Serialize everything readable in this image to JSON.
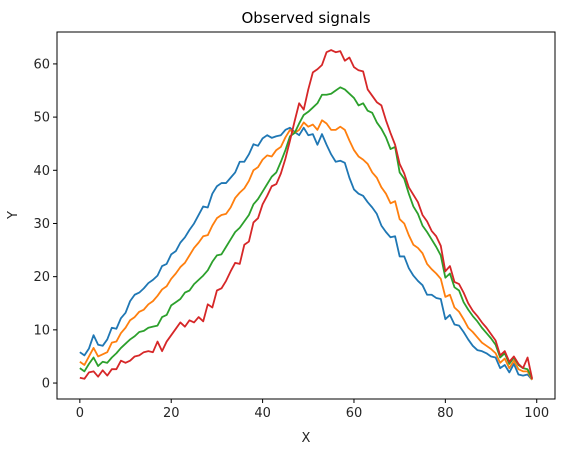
{
  "chart_data": {
    "type": "line",
    "title": "Observed signals",
    "xlabel": "X",
    "ylabel": "Y",
    "xlim": [
      -5,
      104
    ],
    "ylim": [
      -3,
      66
    ],
    "xticks": [
      0,
      20,
      40,
      60,
      80,
      100
    ],
    "yticks": [
      0,
      10,
      20,
      30,
      40,
      50,
      60
    ],
    "grid": false,
    "colors": [
      "#1f77b4",
      "#ff7f0e",
      "#2ca02c",
      "#d62728"
    ],
    "x": [
      0,
      1,
      2,
      3,
      4,
      5,
      6,
      7,
      8,
      9,
      10,
      11,
      12,
      13,
      14,
      15,
      16,
      17,
      18,
      19,
      20,
      21,
      22,
      23,
      24,
      25,
      26,
      27,
      28,
      29,
      30,
      31,
      32,
      33,
      34,
      35,
      36,
      37,
      38,
      39,
      40,
      41,
      42,
      43,
      44,
      45,
      46,
      47,
      48,
      49,
      50,
      51,
      52,
      53,
      54,
      55,
      56,
      57,
      58,
      59,
      60,
      61,
      62,
      63,
      64,
      65,
      66,
      67,
      68,
      69,
      70,
      71,
      72,
      73,
      74,
      75,
      76,
      77,
      78,
      79,
      80,
      81,
      82,
      83,
      84,
      85,
      86,
      87,
      88,
      89,
      90,
      91,
      92,
      93,
      94,
      95,
      96,
      97,
      98,
      99
    ],
    "series": [
      {
        "values": [
          5.8,
          5.2,
          6.5,
          9.0,
          7.2,
          7.0,
          8.2,
          10.4,
          10.2,
          12.2,
          13.2,
          15.4,
          16.6,
          17.0,
          17.8,
          18.8,
          19.4,
          20.2,
          22.0,
          22.4,
          24.2,
          24.8,
          26.4,
          27.4,
          28.8,
          30.0,
          31.6,
          33.2,
          33.0,
          35.6,
          37.0,
          37.6,
          37.6,
          38.6,
          39.6,
          41.6,
          41.6,
          43.0,
          44.9,
          44.6,
          46.0,
          46.6,
          46.1,
          46.4,
          46.6,
          47.6,
          48.0,
          47.2,
          46.6,
          48.0,
          46.6,
          46.8,
          44.8,
          46.8,
          44.8,
          43.0,
          41.6,
          41.8,
          41.4,
          38.6,
          36.4,
          35.6,
          35.2,
          34.0,
          33.0,
          31.8,
          29.6,
          28.4,
          27.4,
          27.6,
          23.8,
          23.8,
          21.6,
          20.2,
          19.2,
          18.4,
          16.6,
          16.6,
          16.0,
          15.8,
          12.0,
          12.8,
          11.0,
          10.8,
          9.6,
          8.2,
          7.0,
          6.2,
          6.0,
          5.6,
          5.0,
          4.8,
          2.8,
          3.4,
          2.0,
          3.6,
          1.6,
          1.4,
          1.6,
          0.6
        ]
      },
      {
        "values": [
          4.0,
          3.4,
          5.0,
          6.6,
          5.0,
          5.4,
          5.8,
          7.6,
          7.8,
          9.4,
          10.4,
          11.8,
          12.4,
          13.4,
          13.8,
          14.8,
          15.4,
          16.4,
          17.6,
          18.2,
          19.6,
          20.6,
          21.8,
          22.6,
          24.0,
          25.4,
          26.4,
          27.6,
          27.8,
          29.6,
          31.0,
          31.6,
          31.8,
          33.0,
          34.8,
          35.8,
          36.6,
          38.0,
          40.0,
          40.6,
          42.0,
          42.8,
          42.6,
          43.8,
          44.4,
          46.2,
          47.6,
          47.0,
          47.6,
          49.0,
          48.2,
          48.6,
          47.6,
          49.4,
          48.8,
          47.6,
          47.6,
          48.2,
          47.6,
          45.6,
          43.8,
          42.6,
          42.0,
          41.2,
          39.6,
          38.6,
          36.8,
          35.6,
          33.8,
          34.2,
          30.8,
          30.0,
          27.8,
          26.0,
          25.4,
          24.4,
          22.4,
          21.4,
          20.6,
          19.6,
          16.2,
          16.6,
          14.2,
          13.4,
          12.0,
          10.4,
          9.6,
          8.6,
          7.6,
          7.0,
          6.4,
          5.6,
          3.8,
          4.6,
          2.8,
          4.2,
          2.6,
          2.2,
          2.2,
          0.6
        ]
      },
      {
        "values": [
          2.8,
          2.2,
          3.6,
          4.8,
          3.2,
          4.0,
          3.8,
          4.8,
          5.6,
          6.6,
          7.4,
          8.2,
          8.8,
          9.6,
          9.8,
          10.4,
          10.6,
          10.8,
          12.4,
          12.8,
          14.6,
          15.2,
          15.8,
          17.0,
          17.4,
          18.6,
          19.4,
          20.2,
          21.2,
          22.8,
          24.0,
          24.2,
          25.6,
          27.0,
          28.4,
          29.2,
          30.4,
          31.6,
          33.6,
          34.6,
          36.0,
          37.4,
          38.8,
          39.6,
          41.6,
          43.8,
          46.4,
          47.0,
          48.8,
          50.4,
          51.0,
          51.8,
          52.6,
          54.2,
          54.2,
          54.4,
          55.0,
          55.6,
          55.2,
          54.4,
          53.6,
          52.2,
          52.6,
          51.2,
          50.8,
          49.0,
          47.8,
          46.2,
          44.0,
          44.4,
          39.6,
          38.4,
          35.6,
          33.2,
          31.8,
          29.6,
          28.4,
          27.0,
          25.6,
          24.0,
          19.8,
          20.6,
          18.0,
          17.4,
          15.2,
          13.8,
          12.6,
          11.6,
          10.4,
          9.4,
          8.4,
          7.2,
          4.8,
          5.6,
          3.6,
          4.8,
          3.4,
          2.8,
          2.6,
          0.8
        ]
      },
      {
        "values": [
          1.0,
          0.8,
          2.0,
          2.2,
          1.2,
          2.4,
          1.4,
          2.6,
          2.6,
          4.2,
          3.8,
          4.2,
          5.0,
          5.2,
          5.8,
          6.0,
          5.8,
          7.8,
          6.0,
          7.8,
          9.0,
          10.2,
          11.4,
          10.6,
          11.8,
          11.4,
          12.4,
          11.6,
          14.8,
          14.2,
          17.4,
          17.8,
          19.2,
          21.0,
          22.6,
          22.4,
          26.0,
          26.6,
          30.2,
          31.0,
          33.6,
          35.2,
          37.0,
          37.4,
          39.4,
          42.2,
          45.6,
          49.2,
          52.6,
          51.4,
          55.2,
          58.4,
          59.0,
          59.8,
          62.2,
          62.6,
          62.2,
          62.4,
          60.6,
          61.2,
          59.4,
          58.8,
          58.6,
          55.2,
          54.0,
          52.8,
          52.2,
          49.4,
          47.0,
          44.8,
          41.2,
          39.4,
          36.8,
          35.4,
          34.0,
          31.6,
          30.4,
          28.6,
          27.6,
          25.8,
          21.0,
          22.0,
          19.0,
          18.6,
          17.0,
          15.0,
          13.6,
          12.6,
          11.4,
          10.4,
          9.2,
          8.0,
          5.2,
          6.0,
          4.0,
          5.0,
          3.6,
          2.8,
          4.8,
          0.8
        ]
      }
    ]
  }
}
